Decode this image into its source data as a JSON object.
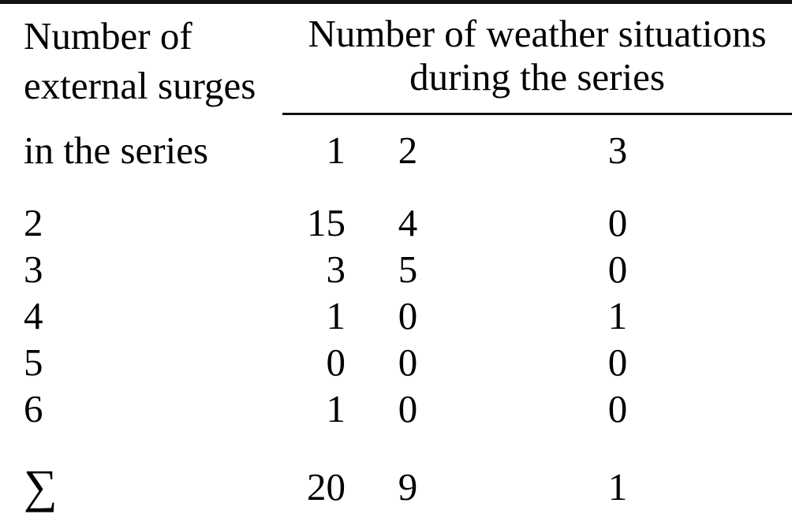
{
  "table": {
    "row_header": {
      "line1": "Number of",
      "line2": "external surges",
      "line3": "in the series"
    },
    "col_group_header": {
      "line1": "Number of weather situations",
      "line2": "during the series"
    },
    "col_headers": [
      "1",
      "2",
      "3"
    ],
    "rows": [
      {
        "label": "2",
        "values": [
          "15",
          "4",
          "0"
        ]
      },
      {
        "label": "3",
        "values": [
          "3",
          "5",
          "0"
        ]
      },
      {
        "label": "4",
        "values": [
          "1",
          "0",
          "1"
        ]
      },
      {
        "label": "5",
        "values": [
          "0",
          "0",
          "0"
        ]
      },
      {
        "label": "6",
        "values": [
          "1",
          "0",
          "0"
        ]
      }
    ],
    "sum_row": {
      "label": "∑",
      "values": [
        "20",
        "9",
        "1"
      ]
    },
    "colors": {
      "text": "#000000",
      "rule": "#121212",
      "background": "#ffffff"
    }
  },
  "chart_data": {
    "type": "table",
    "title": "Number of weather situations during the series vs number of external surges in the series",
    "row_variable": "Number of external surges in the series",
    "column_variable": "Number of weather situations during the series",
    "columns": [
      1,
      2,
      3
    ],
    "rows": [
      {
        "external_surges": 2,
        "counts": [
          15,
          4,
          0
        ]
      },
      {
        "external_surges": 3,
        "counts": [
          3,
          5,
          0
        ]
      },
      {
        "external_surges": 4,
        "counts": [
          1,
          0,
          1
        ]
      },
      {
        "external_surges": 5,
        "counts": [
          0,
          0,
          0
        ]
      },
      {
        "external_surges": 6,
        "counts": [
          1,
          0,
          0
        ]
      }
    ],
    "totals": {
      "label": "∑",
      "counts": [
        20,
        9,
        1
      ]
    }
  }
}
